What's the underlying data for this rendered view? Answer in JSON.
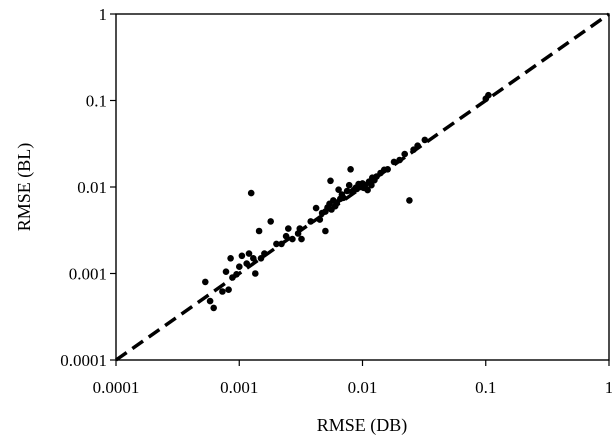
{
  "chart_data": {
    "type": "scatter",
    "xscale": "log",
    "yscale": "log",
    "xlabel": "RMSE (DB)",
    "ylabel": "RMSE (BL)",
    "xlim": [
      0.0001,
      1
    ],
    "ylim": [
      0.0001,
      1
    ],
    "x_ticks": [
      "0.0001",
      "0.001",
      "0.01",
      "0.1",
      "1"
    ],
    "y_ticks": [
      "0.0001",
      "0.001",
      "0.01",
      "0.1",
      "1"
    ],
    "grid": false,
    "reference_line": {
      "style": "dashed",
      "from": [
        0.0001,
        0.0001
      ],
      "to": [
        1,
        1
      ]
    },
    "colors": {
      "points": "#000000",
      "axes": "#000000",
      "line": "#000000"
    },
    "series": [
      {
        "points": [
          [
            0.00053,
            0.0008
          ],
          [
            0.00058,
            0.00048
          ],
          [
            0.00062,
            0.0004
          ],
          [
            0.00073,
            0.00062
          ],
          [
            0.00078,
            0.00105
          ],
          [
            0.00082,
            0.00065
          ],
          [
            0.00085,
            0.0015
          ],
          [
            0.00088,
            0.0009
          ],
          [
            0.00095,
            0.00098
          ],
          [
            0.001,
            0.0012
          ],
          [
            0.00105,
            0.0016
          ],
          [
            0.00115,
            0.0013
          ],
          [
            0.0012,
            0.0017
          ],
          [
            0.00125,
            0.0085
          ],
          [
            0.0013,
            0.0015
          ],
          [
            0.00135,
            0.001
          ],
          [
            0.00145,
            0.0031
          ],
          [
            0.0015,
            0.0015
          ],
          [
            0.0016,
            0.0017
          ],
          [
            0.0018,
            0.004
          ],
          [
            0.002,
            0.0022
          ],
          [
            0.0022,
            0.0022
          ],
          [
            0.0024,
            0.0027
          ],
          [
            0.0025,
            0.0033
          ],
          [
            0.0027,
            0.0025
          ],
          [
            0.003,
            0.0029
          ],
          [
            0.0031,
            0.0033
          ],
          [
            0.0032,
            0.0025
          ],
          [
            0.0038,
            0.004
          ],
          [
            0.0042,
            0.0057
          ],
          [
            0.0045,
            0.0042
          ],
          [
            0.0047,
            0.005
          ],
          [
            0.005,
            0.0031
          ],
          [
            0.005,
            0.0052
          ],
          [
            0.0052,
            0.0058
          ],
          [
            0.0054,
            0.0064
          ],
          [
            0.0055,
            0.0118
          ],
          [
            0.0056,
            0.0055
          ],
          [
            0.0058,
            0.007
          ],
          [
            0.006,
            0.006
          ],
          [
            0.0062,
            0.0066
          ],
          [
            0.0064,
            0.0093
          ],
          [
            0.0066,
            0.0073
          ],
          [
            0.0068,
            0.0082
          ],
          [
            0.007,
            0.0075
          ],
          [
            0.0075,
            0.009
          ],
          [
            0.0078,
            0.0105
          ],
          [
            0.008,
            0.016
          ],
          [
            0.0082,
            0.0088
          ],
          [
            0.0085,
            0.0092
          ],
          [
            0.0088,
            0.0098
          ],
          [
            0.009,
            0.0095
          ],
          [
            0.0093,
            0.0108
          ],
          [
            0.0096,
            0.01
          ],
          [
            0.01,
            0.011
          ],
          [
            0.0102,
            0.0098
          ],
          [
            0.0105,
            0.0105
          ],
          [
            0.011,
            0.0092
          ],
          [
            0.0113,
            0.0115
          ],
          [
            0.0118,
            0.0105
          ],
          [
            0.012,
            0.0128
          ],
          [
            0.0125,
            0.012
          ],
          [
            0.013,
            0.0132
          ],
          [
            0.014,
            0.0145
          ],
          [
            0.015,
            0.0158
          ],
          [
            0.016,
            0.016
          ],
          [
            0.018,
            0.0195
          ],
          [
            0.02,
            0.0205
          ],
          [
            0.022,
            0.024
          ],
          [
            0.024,
            0.007
          ],
          [
            0.026,
            0.027
          ],
          [
            0.028,
            0.03
          ],
          [
            0.032,
            0.035
          ],
          [
            0.1,
            0.105
          ],
          [
            0.105,
            0.115
          ]
        ]
      }
    ]
  }
}
